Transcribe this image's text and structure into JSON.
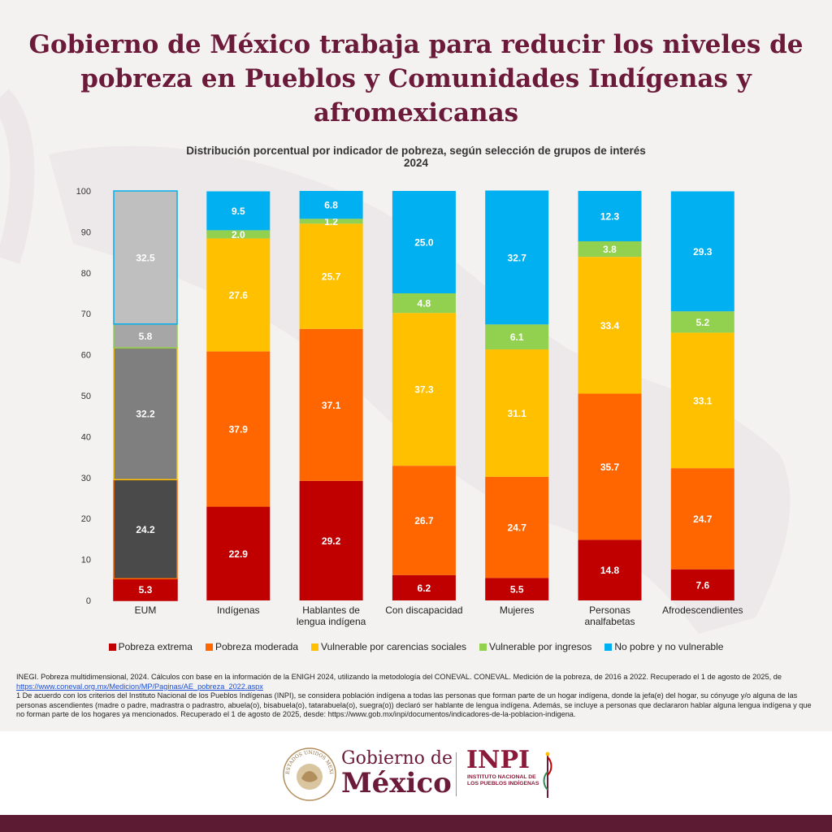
{
  "title": "Gobierno de México trabaja para reducir los niveles de pobreza en Pueblos y Comunidades Indígenas y afromexicanas",
  "chart_data": {
    "type": "bar",
    "stacked": true,
    "title": "Distribución porcentual por indicador de pobreza, según selección de grupos de interés",
    "subtitle": "2024",
    "ylim": [
      0,
      100
    ],
    "yticks": [
      0,
      10,
      20,
      30,
      40,
      50,
      60,
      70,
      80,
      90,
      100
    ],
    "categories": [
      "EUM",
      "Indígenas",
      "Hablantes de lengua indígena",
      "Con discapacidad",
      "Mujeres",
      "Personas analfabetas",
      "Afrodescendientes"
    ],
    "series": [
      {
        "name": "Pobreza extrema",
        "color": "#c00000",
        "values": [
          5.3,
          22.9,
          29.2,
          6.2,
          5.5,
          14.8,
          7.6
        ]
      },
      {
        "name": "Pobreza moderada",
        "color": "#ff6600",
        "values": [
          24.2,
          37.9,
          37.1,
          26.7,
          24.7,
          35.7,
          24.7
        ]
      },
      {
        "name": "Vulnerable por carencias sociales",
        "color": "#ffc000",
        "values": [
          32.2,
          27.6,
          25.7,
          37.3,
          31.1,
          33.4,
          33.1
        ]
      },
      {
        "name": "Vulnerable por ingresos",
        "color": "#92d050",
        "values": [
          5.8,
          2.0,
          1.2,
          4.8,
          6.1,
          3.8,
          5.2
        ]
      },
      {
        "name": "No pobre y no vulnerable",
        "color": "#00b0f0",
        "values": [
          32.5,
          9.5,
          6.8,
          25.0,
          32.7,
          12.3,
          29.3
        ]
      }
    ],
    "eum_colors": [
      "#c00000",
      "#4a4a4a",
      "#7f7f7f",
      "#a6a6a6",
      "#bfbfbf"
    ],
    "legend_position": "bottom",
    "grid": false
  },
  "notes": {
    "n1a": "INEGI. Pobreza multidimensional, 2024. Cálculos con base en la información de la ENIGH 2024, utilizando la metodología del CONEVAL. CONEVAL. Medición de la pobreza, de 2016 a 2022. Recuperado el 1 de agosto de 2025, de ",
    "n1link": "https://www.coneval.org.mx/Medicion/MP/Paginas/AE_pobreza_2022.aspx",
    "n2": "1 De acuerdo con los criterios del Instituto Nacional de los Pueblos Indígenas (INPI), se considera población indígena a todas las personas que forman parte de un hogar indígena, donde la jefa(e) del hogar, su cónyuge y/o alguna de las personas ascendientes (madre o padre, madrastra o padrastro, abuela(o), bisabuela(o), tatarabuela(o), suegra(o)) declaró ser hablante de lengua indígena. Además, se incluye a personas que declararon hablar alguna lengua indígena y que no forman parte de los hogares ya mencionados. Recuperado el 1 de agosto de 2025, desde: https://www.gob.mx/inpi/documentos/indicadores-de-la-poblacion-indigena."
  },
  "footer": {
    "gob_line1": "Gobierno de",
    "gob_line2": "México",
    "inpi": "INPI",
    "inpi_sub": "INSTITUTO NACIONAL DE LOS PUEBLOS INDÍGENAS",
    "seal_text": "ESTADOS UNIDOS MEXICANOS"
  },
  "colors": {
    "brand": "#6b1a3a",
    "bar": "#5c1a33"
  }
}
